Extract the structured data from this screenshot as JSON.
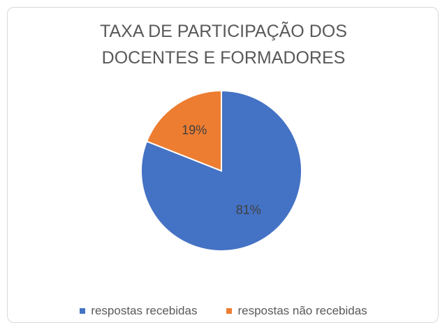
{
  "chart_data": {
    "type": "pie",
    "title": "TAXA DE PARTICIPAÇÃO DOS DOCENTES E FORMADORES",
    "categories": [
      "respostas recebidas",
      "respostas não recebidas"
    ],
    "values": [
      81,
      19
    ],
    "value_labels": [
      "81%",
      "19%"
    ],
    "colors": [
      "#4472c4",
      "#ed7d31"
    ],
    "legend": "bottom"
  }
}
